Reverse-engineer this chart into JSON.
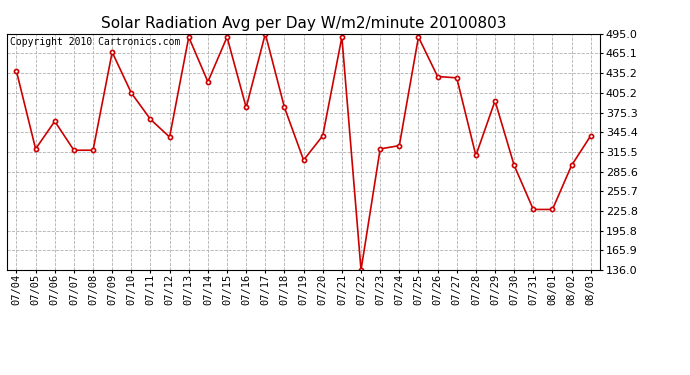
{
  "title": "Solar Radiation Avg per Day W/m2/minute 20100803",
  "copyright": "Copyright 2010 Cartronics.com",
  "dates": [
    "07/04",
    "07/05",
    "07/06",
    "07/07",
    "07/08",
    "07/09",
    "07/10",
    "07/11",
    "07/12",
    "07/13",
    "07/14",
    "07/15",
    "07/16",
    "07/17",
    "07/18",
    "07/19",
    "07/20",
    "07/21",
    "07/22",
    "07/23",
    "07/24",
    "07/25",
    "07/26",
    "07/27",
    "07/28",
    "07/29",
    "07/30",
    "07/31",
    "08/01",
    "08/02",
    "08/03"
  ],
  "values": [
    438,
    320,
    362,
    318,
    318,
    467,
    405,
    365,
    338,
    490,
    422,
    490,
    383,
    495,
    383,
    303,
    340,
    490,
    136,
    320,
    325,
    490,
    430,
    428,
    310,
    393,
    295,
    228,
    228,
    295,
    340
  ],
  "line_color": "#cc0000",
  "marker_color": "#cc0000",
  "bg_color": "#ffffff",
  "plot_bg_color": "#ffffff",
  "grid_color": "#b0b0b0",
  "ylim_min": 136.0,
  "ylim_max": 495.0,
  "ytick_values": [
    136.0,
    165.9,
    195.8,
    225.8,
    255.7,
    285.6,
    315.5,
    345.4,
    375.3,
    405.2,
    435.2,
    465.1,
    495.0
  ],
  "title_fontsize": 11,
  "copyright_fontsize": 7,
  "tick_fontsize": 7.5,
  "ytick_fontsize": 8
}
